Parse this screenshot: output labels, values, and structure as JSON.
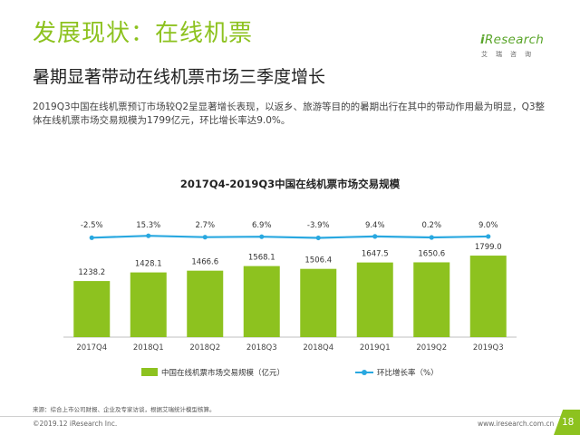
{
  "page": {
    "title": "发展现状：在线机票",
    "subtitle": "暑期显著带动在线机票市场三季度增长",
    "description": "2019Q3中国在线机票预订市场较Q2呈显著增长表现，以返乡、旅游等目的的暑期出行在其中的带动作用最为明显，Q3整体在线机票市场交易规模为1799亿元，环比增长率达9.0%。",
    "source": "来源：综合上市公司财报、企业及专家访谈，根据艾瑞统计模型核算。",
    "copyright": "©2019.12 iResearch Inc.",
    "website": "www.iresearch.com.cn",
    "page_number": "18"
  },
  "logo": {
    "brand_prefix": "i",
    "brand_rest": "Research",
    "tagline": "艾瑞咨询"
  },
  "colors": {
    "accent_green": "#8dc21f",
    "bar_green": "#8dc21f",
    "line_blue": "#29a8e0"
  },
  "chart_data": {
    "type": "bar",
    "title": "2017Q4-2019Q3中国在线机票市场交易规模",
    "categories": [
      "2017Q4",
      "2018Q1",
      "2018Q2",
      "2018Q3",
      "2018Q4",
      "2019Q1",
      "2019Q2",
      "2019Q3"
    ],
    "series": [
      {
        "name": "中国在线机票市场交易规模（亿元）",
        "type": "bar",
        "values": [
          1238.2,
          1428.1,
          1466.6,
          1568.1,
          1506.4,
          1647.5,
          1650.6,
          1799.0
        ],
        "labels": [
          "1238.2",
          "1428.1",
          "1466.6",
          "1568.1",
          "1506.4",
          "1647.5",
          "1650.6",
          "1799.0"
        ]
      },
      {
        "name": "环比增长率（%）",
        "type": "line",
        "values": [
          -2.5,
          15.3,
          2.7,
          6.9,
          -3.9,
          9.4,
          0.2,
          9.0
        ],
        "labels": [
          "-2.5%",
          "15.3%",
          "2.7%",
          "6.9%",
          "-3.9%",
          "9.4%",
          "0.2%",
          "9.0%"
        ]
      }
    ],
    "legend": "bottom-center",
    "grid": false
  }
}
